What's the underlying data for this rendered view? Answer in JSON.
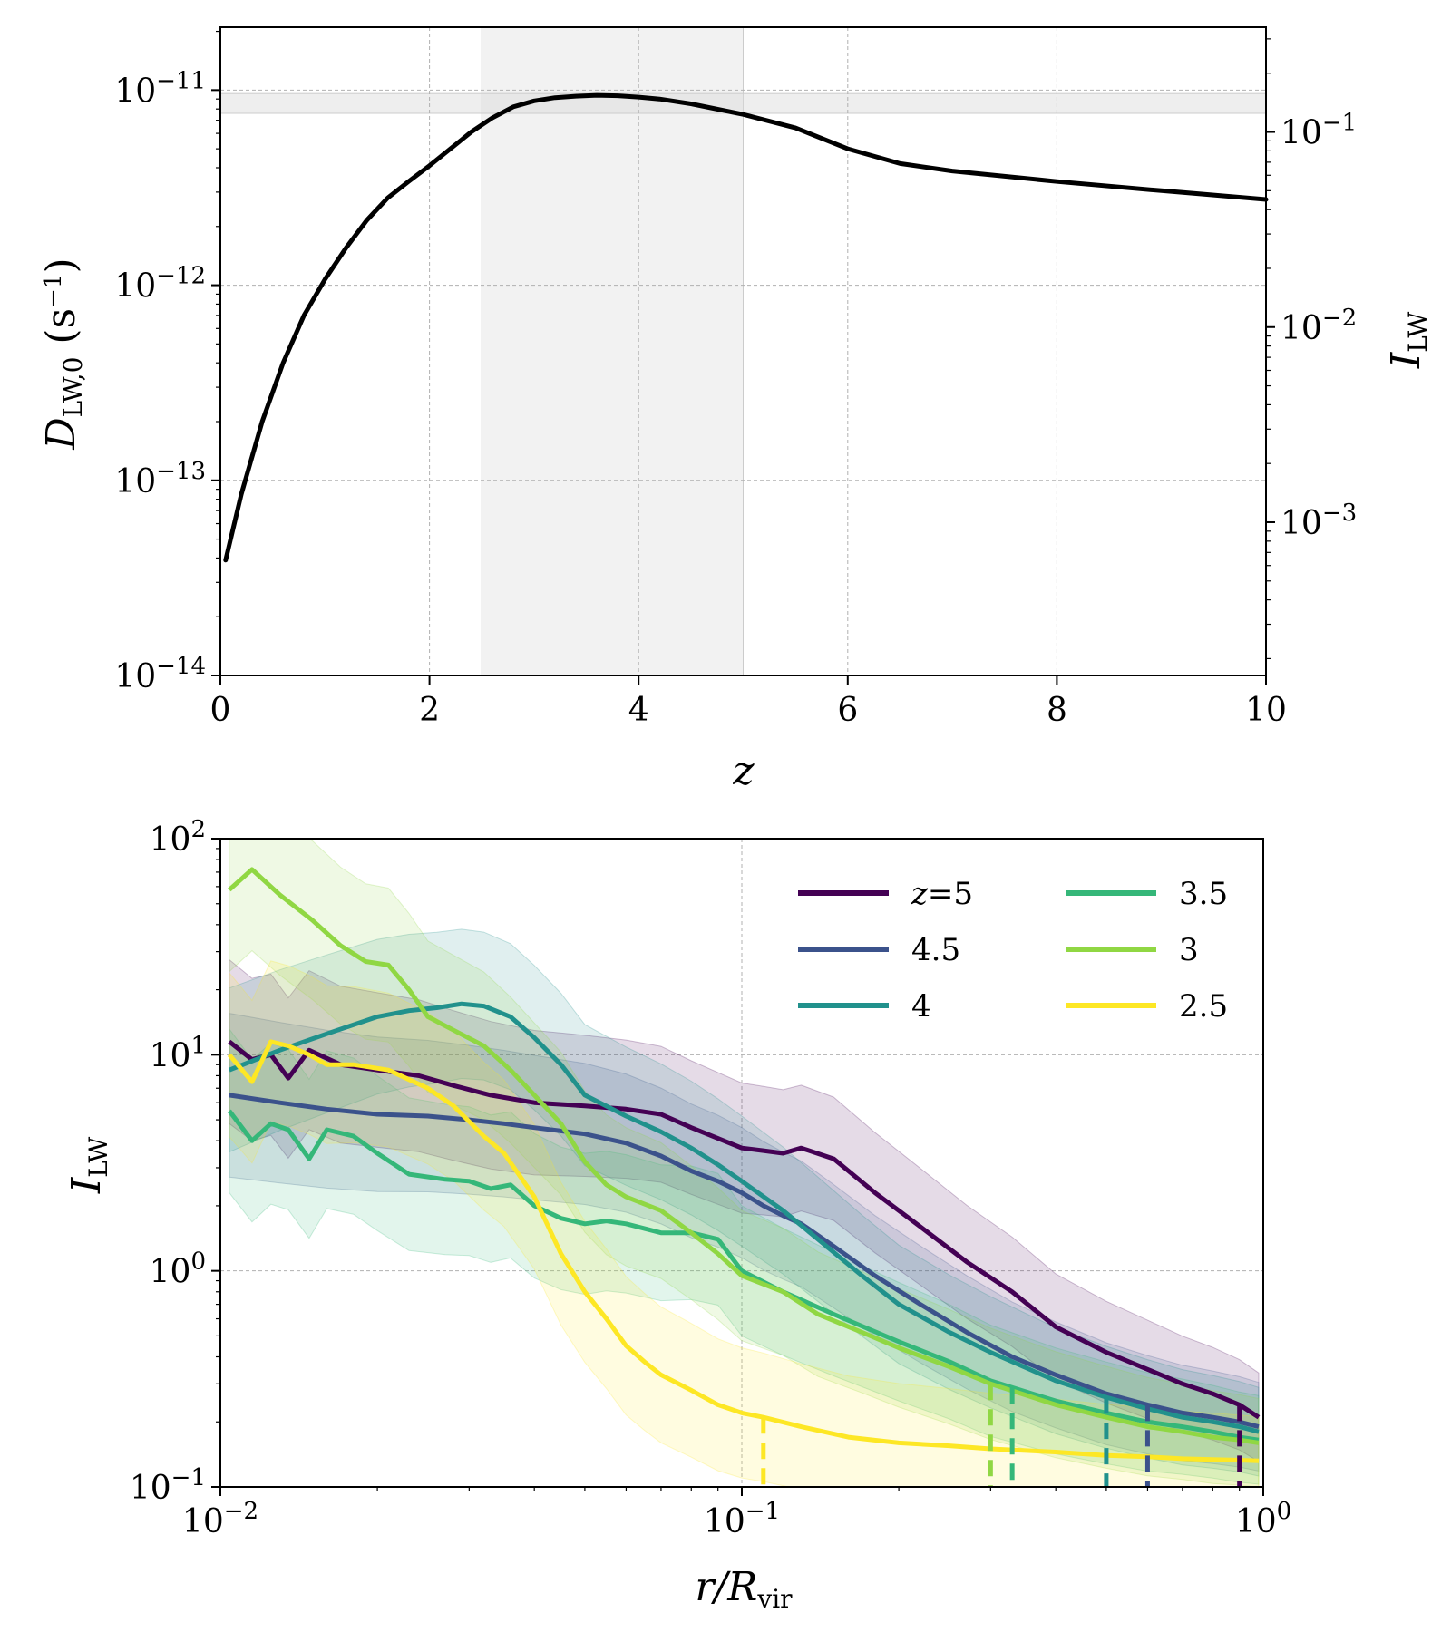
{
  "chart_data": [
    {
      "type": "line",
      "xlabel": "z",
      "ylabel": "D",
      "ylabel_sub": "LW,0",
      "ylabel_unit": "(s",
      "ylabel_unit_sup": "−1",
      "ylabel_unit_close": ")",
      "y2label": "I",
      "y2label_sub": "LW",
      "xlim": [
        0,
        10
      ],
      "ylim": [
        1e-14,
        2.1e-11
      ],
      "yscale": "log",
      "x_ticks": [
        0,
        2,
        4,
        6,
        8,
        10
      ],
      "x_tick_labels": [
        "0",
        "2",
        "4",
        "6",
        "8",
        "10"
      ],
      "y_ticks": [
        {
          "value": 1e-14,
          "base": "10",
          "exp": "−14"
        },
        {
          "value": 1e-13,
          "base": "10",
          "exp": "−13"
        },
        {
          "value": 1e-12,
          "base": "10",
          "exp": "−12"
        },
        {
          "value": 1e-11,
          "base": "10",
          "exp": "−11"
        }
      ],
      "y2_ticks": [
        {
          "value": 0.001,
          "base": "10",
          "exp": "−3"
        },
        {
          "value": 0.01,
          "base": "10",
          "exp": "−2"
        },
        {
          "value": 0.1,
          "base": "10",
          "exp": "−1"
        }
      ],
      "y2_to_y_factor": 6.1e-11,
      "grid": true,
      "shaded_x_band": [
        2.5,
        5.0
      ],
      "shaded_y_band": [
        7.6e-12,
        9.6e-12
      ],
      "series": [
        {
          "name": "D_LW,0",
          "color": "#000000",
          "x": [
            0.05,
            0.2,
            0.4,
            0.6,
            0.8,
            1.0,
            1.2,
            1.4,
            1.6,
            1.8,
            2.0,
            2.2,
            2.4,
            2.6,
            2.8,
            3.0,
            3.2,
            3.4,
            3.6,
            3.8,
            4.0,
            4.2,
            4.5,
            5.0,
            5.5,
            6.0,
            6.5,
            7.0,
            8.0,
            9.0,
            10.0
          ],
          "y": [
            3.9e-14,
            8.5e-14,
            2e-13,
            4e-13,
            7e-13,
            1.07e-12,
            1.55e-12,
            2.15e-12,
            2.8e-12,
            3.4e-12,
            4.1e-12,
            5e-12,
            6.1e-12,
            7.2e-12,
            8.2e-12,
            8.8e-12,
            9.15e-12,
            9.3e-12,
            9.4e-12,
            9.35e-12,
            9.2e-12,
            9e-12,
            8.5e-12,
            7.5e-12,
            6.4e-12,
            5e-12,
            4.2e-12,
            3.85e-12,
            3.4e-12,
            3.05e-12,
            2.75e-12
          ]
        }
      ]
    },
    {
      "type": "line",
      "xlabel": "r/R",
      "xlabel_sub": "vir",
      "ylabel": "I",
      "ylabel_sub": "LW",
      "xscale": "log",
      "yscale": "log",
      "xlim": [
        0.01,
        1.0
      ],
      "ylim": [
        0.1,
        100
      ],
      "x_ticks": [
        {
          "value": 0.01,
          "base": "10",
          "exp": "−2"
        },
        {
          "value": 0.1,
          "base": "10",
          "exp": "−1"
        },
        {
          "value": 1.0,
          "base": "10",
          "exp": "0"
        }
      ],
      "y_ticks": [
        {
          "value": 0.1,
          "base": "10",
          "exp": "−1"
        },
        {
          "value": 1,
          "base": "10",
          "exp": "0"
        },
        {
          "value": 10,
          "base": "10",
          "exp": "1"
        },
        {
          "value": 100,
          "base": "10",
          "exp": "2"
        }
      ],
      "grid": true,
      "legend": {
        "location": "top-right",
        "columns": 2,
        "first_label_prefix": "z="
      },
      "series": [
        {
          "name": "5",
          "color": "#440154",
          "x": [
            0.0104,
            0.0115,
            0.0125,
            0.0135,
            0.0148,
            0.017,
            0.02,
            0.024,
            0.028,
            0.033,
            0.04,
            0.05,
            0.06,
            0.07,
            0.08,
            0.09,
            0.1,
            0.11,
            0.12,
            0.13,
            0.15,
            0.18,
            0.22,
            0.27,
            0.33,
            0.4,
            0.5,
            0.6,
            0.7,
            0.8,
            0.9,
            0.98
          ],
          "y": [
            11.5,
            9.5,
            10.0,
            7.8,
            10.5,
            9.0,
            8.5,
            8.0,
            7.2,
            6.5,
            6.0,
            5.8,
            5.6,
            5.3,
            4.6,
            4.1,
            3.7,
            3.6,
            3.5,
            3.7,
            3.3,
            2.3,
            1.6,
            1.1,
            0.8,
            0.55,
            0.42,
            0.35,
            0.3,
            0.27,
            0.24,
            0.21
          ],
          "threshold": 0.9
        },
        {
          "name": "4.5",
          "color": "#3b528b",
          "x": [
            0.0104,
            0.013,
            0.016,
            0.02,
            0.025,
            0.03,
            0.035,
            0.04,
            0.05,
            0.06,
            0.07,
            0.08,
            0.09,
            0.1,
            0.11,
            0.12,
            0.13,
            0.15,
            0.18,
            0.22,
            0.27,
            0.33,
            0.4,
            0.5,
            0.6,
            0.7,
            0.8,
            0.9,
            0.98
          ],
          "y": [
            6.5,
            6.0,
            5.6,
            5.3,
            5.2,
            5.0,
            4.8,
            4.6,
            4.3,
            3.9,
            3.4,
            2.9,
            2.6,
            2.3,
            2.0,
            1.8,
            1.65,
            1.3,
            0.95,
            0.7,
            0.52,
            0.4,
            0.33,
            0.27,
            0.24,
            0.22,
            0.21,
            0.2,
            0.19
          ],
          "threshold": 0.6
        },
        {
          "name": "4",
          "color": "#21918c",
          "x": [
            0.0104,
            0.013,
            0.016,
            0.02,
            0.023,
            0.026,
            0.029,
            0.032,
            0.036,
            0.04,
            0.045,
            0.05,
            0.06,
            0.07,
            0.08,
            0.09,
            0.1,
            0.12,
            0.14,
            0.17,
            0.2,
            0.25,
            0.3,
            0.4,
            0.5,
            0.6,
            0.7,
            0.8,
            0.9,
            0.98
          ],
          "y": [
            8.5,
            10.5,
            12.5,
            15.0,
            16.0,
            16.5,
            17.2,
            16.8,
            15.0,
            12.0,
            9.0,
            6.5,
            5.2,
            4.4,
            3.7,
            3.1,
            2.6,
            1.9,
            1.4,
            0.95,
            0.7,
            0.52,
            0.42,
            0.31,
            0.26,
            0.23,
            0.21,
            0.2,
            0.19,
            0.18
          ],
          "threshold": 0.5
        },
        {
          "name": "3.5",
          "color": "#35b779",
          "x": [
            0.0104,
            0.0115,
            0.0125,
            0.0135,
            0.0148,
            0.016,
            0.018,
            0.02,
            0.023,
            0.027,
            0.03,
            0.033,
            0.036,
            0.04,
            0.045,
            0.05,
            0.055,
            0.06,
            0.07,
            0.08,
            0.09,
            0.1,
            0.12,
            0.15,
            0.2,
            0.25,
            0.3,
            0.4,
            0.5,
            0.6,
            0.7,
            0.8,
            0.9,
            0.98
          ],
          "y": [
            5.5,
            4.0,
            4.8,
            4.5,
            3.3,
            4.5,
            4.2,
            3.5,
            2.8,
            2.65,
            2.6,
            2.4,
            2.5,
            2.0,
            1.75,
            1.65,
            1.7,
            1.65,
            1.5,
            1.5,
            1.4,
            1.0,
            0.8,
            0.63,
            0.47,
            0.38,
            0.31,
            0.25,
            0.22,
            0.2,
            0.19,
            0.18,
            0.17,
            0.165
          ],
          "threshold": 0.33
        },
        {
          "name": "3",
          "color": "#90d743",
          "x": [
            0.0104,
            0.0115,
            0.013,
            0.015,
            0.017,
            0.019,
            0.021,
            0.023,
            0.025,
            0.028,
            0.032,
            0.036,
            0.04,
            0.045,
            0.05,
            0.055,
            0.06,
            0.07,
            0.08,
            0.09,
            0.1,
            0.12,
            0.14,
            0.17,
            0.2,
            0.25,
            0.3,
            0.4,
            0.5,
            0.6,
            0.7,
            0.8,
            0.9,
            0.98
          ],
          "y": [
            58,
            72,
            55,
            42,
            32,
            27,
            26,
            20,
            15,
            13,
            11,
            8.5,
            6.5,
            4.8,
            3.2,
            2.5,
            2.2,
            1.9,
            1.5,
            1.2,
            0.95,
            0.8,
            0.63,
            0.52,
            0.44,
            0.36,
            0.3,
            0.24,
            0.21,
            0.19,
            0.18,
            0.17,
            0.165,
            0.16
          ],
          "threshold": 0.3
        },
        {
          "name": "2.5",
          "color": "#fde725",
          "x": [
            0.0104,
            0.0115,
            0.0125,
            0.0135,
            0.0148,
            0.016,
            0.018,
            0.021,
            0.025,
            0.028,
            0.032,
            0.035,
            0.04,
            0.045,
            0.05,
            0.055,
            0.06,
            0.065,
            0.07,
            0.08,
            0.09,
            0.1,
            0.11,
            0.13,
            0.16,
            0.2,
            0.25,
            0.3,
            0.4,
            0.5,
            0.6,
            0.7,
            0.8,
            0.9,
            0.98
          ],
          "y": [
            10.0,
            7.5,
            11.5,
            11.0,
            10.0,
            9.0,
            9.0,
            8.5,
            7.0,
            5.8,
            4.2,
            3.5,
            2.2,
            1.2,
            0.8,
            0.6,
            0.45,
            0.38,
            0.33,
            0.28,
            0.24,
            0.22,
            0.21,
            0.19,
            0.17,
            0.16,
            0.155,
            0.15,
            0.145,
            0.14,
            0.138,
            0.135,
            0.134,
            0.133,
            0.132
          ],
          "threshold": 0.11
        }
      ]
    }
  ]
}
